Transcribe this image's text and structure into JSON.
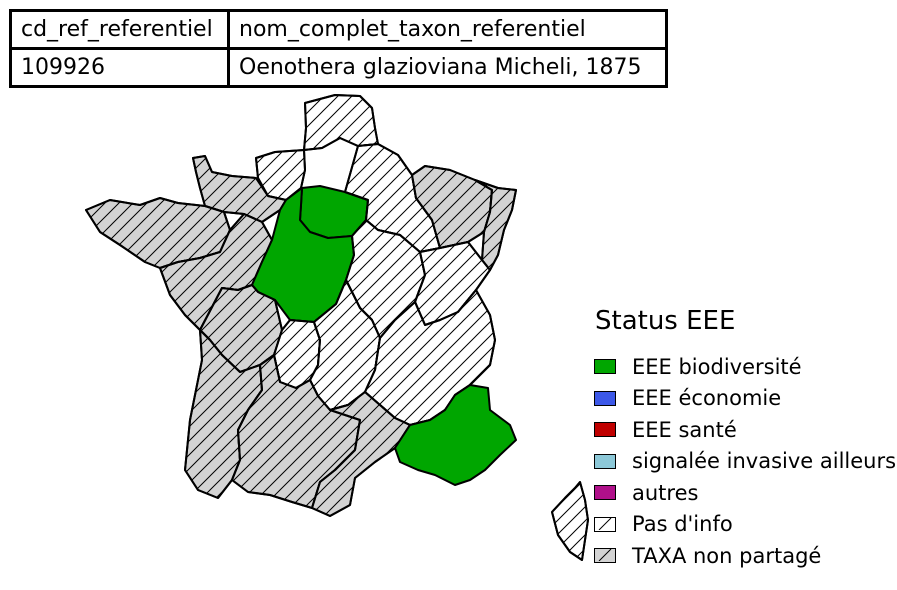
{
  "table": {
    "headers": [
      "cd_ref_referentiel",
      "nom_complet_taxon_referentiel"
    ],
    "row": [
      "109926",
      "Oenothera glazioviana Micheli, 1875"
    ]
  },
  "legend": {
    "title": "Status EEE",
    "items": [
      {
        "label": "EEE biodiversité",
        "color": "#00a600",
        "pattern": "solid"
      },
      {
        "label": "EEE économie",
        "color": "#3c58e8",
        "pattern": "solid"
      },
      {
        "label": "EEE santé",
        "color": "#c00000",
        "pattern": "solid"
      },
      {
        "label": "signalée invasive ailleurs",
        "color": "#8cc8d8",
        "pattern": "solid"
      },
      {
        "label": "autres",
        "color": "#b0108a",
        "pattern": "solid"
      },
      {
        "label": "Pas d'info",
        "color": "#ffffff",
        "pattern": "hatch"
      },
      {
        "label": "TAXA non partagé",
        "color": "#d3d3d3",
        "pattern": "hatch"
      }
    ]
  },
  "regions": [
    {
      "name": "Hauts-de-France",
      "status": "Pas d'info"
    },
    {
      "name": "Haute-Normandie",
      "status": "Pas d'info"
    },
    {
      "name": "Basse-Normandie",
      "status": "TAXA non partagé"
    },
    {
      "name": "Bretagne",
      "status": "TAXA non partagé"
    },
    {
      "name": "Pays de la Loire",
      "status": "TAXA non partagé"
    },
    {
      "name": "Île-de-France",
      "status": "EEE biodiversité"
    },
    {
      "name": "Centre",
      "status": "EEE biodiversité"
    },
    {
      "name": "Champagne-Ardenne",
      "status": "Pas d'info"
    },
    {
      "name": "Lorraine",
      "status": "TAXA non partagé"
    },
    {
      "name": "Alsace",
      "status": "TAXA non partagé"
    },
    {
      "name": "Bourgogne",
      "status": "Pas d'info"
    },
    {
      "name": "Franche-Comté",
      "status": "Pas d'info"
    },
    {
      "name": "Poitou-Charentes",
      "status": "TAXA non partagé"
    },
    {
      "name": "Limousin",
      "status": "Pas d'info"
    },
    {
      "name": "Auvergne",
      "status": "Pas d'info"
    },
    {
      "name": "Rhône-Alpes",
      "status": "Pas d'info"
    },
    {
      "name": "Aquitaine",
      "status": "TAXA non partagé"
    },
    {
      "name": "Midi-Pyrénées",
      "status": "TAXA non partagé"
    },
    {
      "name": "Languedoc-Roussillon",
      "status": "TAXA non partagé"
    },
    {
      "name": "Provence-Alpes-Côte d'Azur",
      "status": "EEE biodiversité"
    },
    {
      "name": "Corse",
      "status": "Pas d'info"
    }
  ]
}
